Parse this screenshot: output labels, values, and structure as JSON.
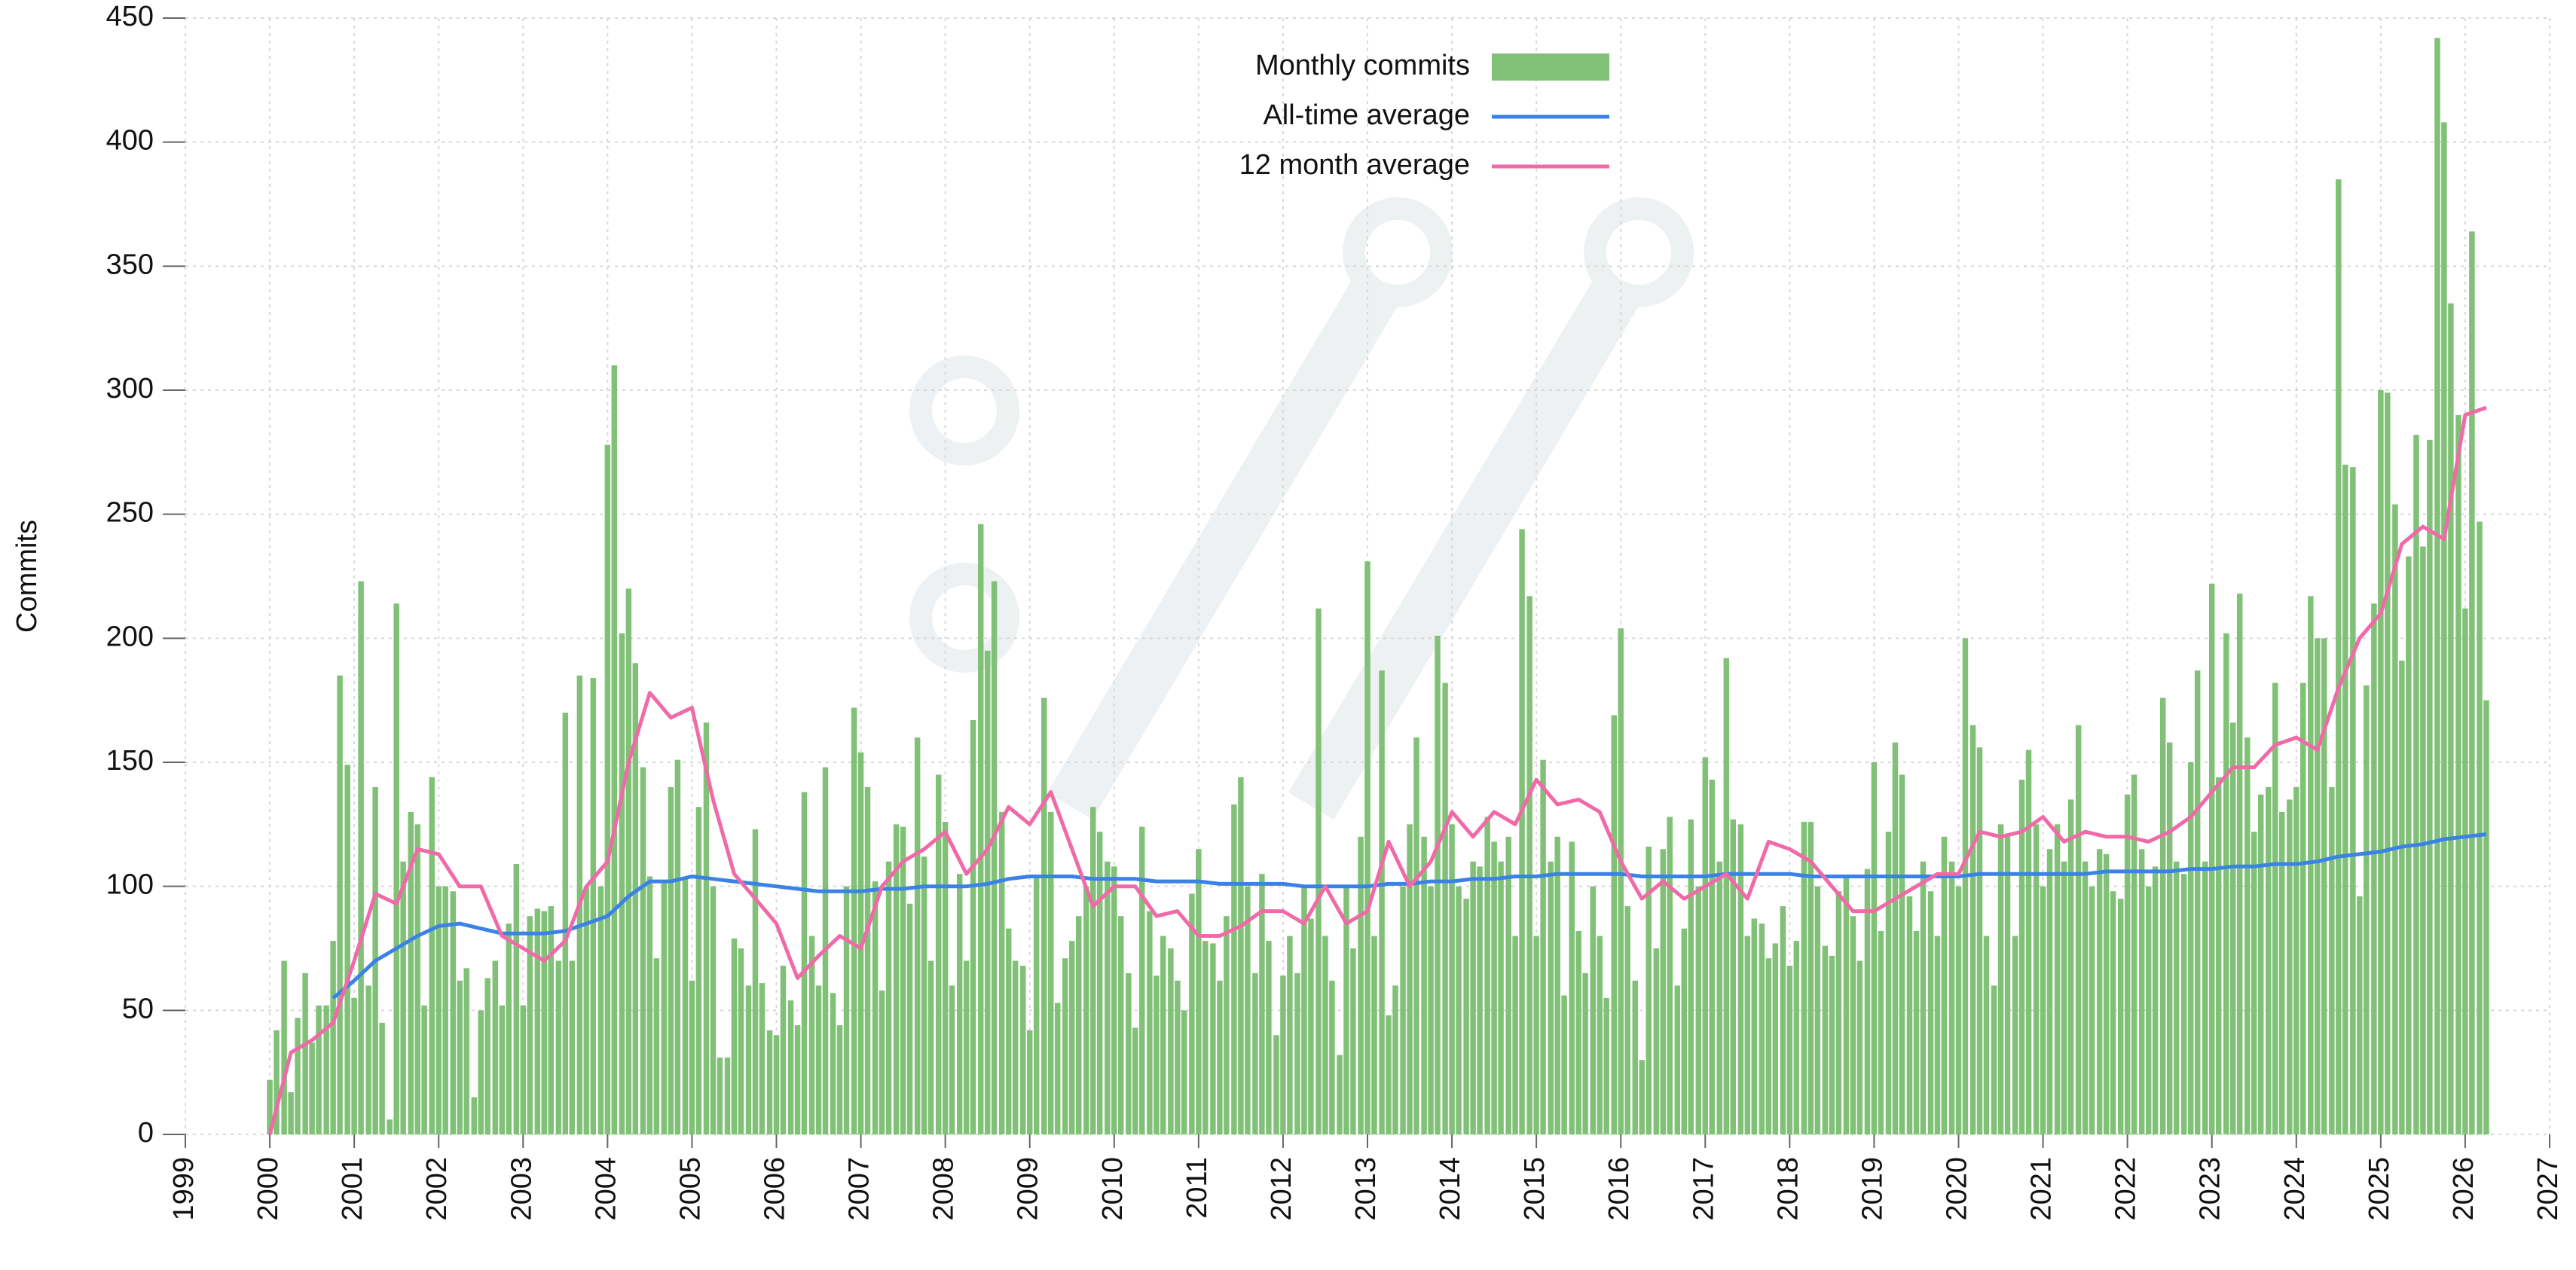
{
  "chart_data": {
    "type": "bar",
    "y_label": "Commits",
    "grid": true,
    "legend": "top",
    "xlim": [
      1999,
      2027
    ],
    "xticks": [
      1999,
      2000,
      2001,
      2002,
      2003,
      2004,
      2005,
      2006,
      2007,
      2008,
      2009,
      2010,
      2011,
      2012,
      2013,
      2014,
      2015,
      2016,
      2017,
      2018,
      2019,
      2020,
      2021,
      2022,
      2023,
      2024,
      2025,
      2026,
      2027
    ],
    "ylim": [
      0,
      450
    ],
    "yticks": [
      0,
      50,
      100,
      150,
      200,
      250,
      300,
      350,
      400,
      450
    ],
    "series": [
      {
        "name": "Monthly commits",
        "type": "bar",
        "color": "#80c177",
        "x": [
          2000,
          2000.08,
          2000.17,
          2000.25,
          2000.33,
          2000.42,
          2000.5,
          2000.58,
          2000.67,
          2000.75,
          2000.83,
          2000.92,
          2001,
          2001.08,
          2001.17,
          2001.25,
          2001.33,
          2001.42,
          2001.5,
          2001.58,
          2001.67,
          2001.75,
          2001.83,
          2001.92,
          2002,
          2002.08,
          2002.17,
          2002.25,
          2002.33,
          2002.42,
          2002.5,
          2002.58,
          2002.67,
          2002.75,
          2002.83,
          2002.92,
          2003,
          2003.08,
          2003.17,
          2003.25,
          2003.33,
          2003.42,
          2003.5,
          2003.58,
          2003.67,
          2003.75,
          2003.83,
          2003.92,
          2004,
          2004.08,
          2004.17,
          2004.25,
          2004.33,
          2004.42,
          2004.5,
          2004.58,
          2004.67,
          2004.75,
          2004.83,
          2004.92,
          2005,
          2005.08,
          2005.17,
          2005.25,
          2005.33,
          2005.42,
          2005.5,
          2005.58,
          2005.67,
          2005.75,
          2005.83,
          2005.92,
          2006,
          2006.08,
          2006.17,
          2006.25,
          2006.33,
          2006.42,
          2006.5,
          2006.58,
          2006.67,
          2006.75,
          2006.83,
          2006.92,
          2007,
          2007.08,
          2007.17,
          2007.25,
          2007.33,
          2007.42,
          2007.5,
          2007.58,
          2007.67,
          2007.75,
          2007.83,
          2007.92,
          2008,
          2008.08,
          2008.17,
          2008.25,
          2008.33,
          2008.42,
          2008.5,
          2008.58,
          2008.67,
          2008.75,
          2008.83,
          2008.92,
          2009,
          2009.08,
          2009.17,
          2009.25,
          2009.33,
          2009.42,
          2009.5,
          2009.58,
          2009.67,
          2009.75,
          2009.83,
          2009.92,
          2010,
          2010.08,
          2010.17,
          2010.25,
          2010.33,
          2010.42,
          2010.5,
          2010.58,
          2010.67,
          2010.75,
          2010.83,
          2010.92,
          2011,
          2011.08,
          2011.17,
          2011.25,
          2011.33,
          2011.42,
          2011.5,
          2011.58,
          2011.67,
          2011.75,
          2011.83,
          2011.92,
          2012,
          2012.08,
          2012.17,
          2012.25,
          2012.33,
          2012.42,
          2012.5,
          2012.58,
          2012.67,
          2012.75,
          2012.83,
          2012.92,
          2013,
          2013.08,
          2013.17,
          2013.25,
          2013.33,
          2013.42,
          2013.5,
          2013.58,
          2013.67,
          2013.75,
          2013.83,
          2013.92,
          2014,
          2014.08,
          2014.17,
          2014.25,
          2014.33,
          2014.42,
          2014.5,
          2014.58,
          2014.67,
          2014.75,
          2014.83,
          2014.92,
          2015,
          2015.08,
          2015.17,
          2015.25,
          2015.33,
          2015.42,
          2015.5,
          2015.58,
          2015.67,
          2015.75,
          2015.83,
          2015.92,
          2016,
          2016.08,
          2016.17,
          2016.25,
          2016.33,
          2016.42,
          2016.5,
          2016.58,
          2016.67,
          2016.75,
          2016.83,
          2016.92,
          2017,
          2017.08,
          2017.17,
          2017.25,
          2017.33,
          2017.42,
          2017.5,
          2017.58,
          2017.67,
          2017.75,
          2017.83,
          2017.92,
          2018,
          2018.08,
          2018.17,
          2018.25,
          2018.33,
          2018.42,
          2018.5,
          2018.58,
          2018.67,
          2018.75,
          2018.83,
          2018.92,
          2019,
          2019.08,
          2019.17,
          2019.25,
          2019.33,
          2019.42,
          2019.5,
          2019.58,
          2019.67,
          2019.75,
          2019.83,
          2019.92,
          2020,
          2020.08,
          2020.17,
          2020.25,
          2020.33,
          2020.42,
          2020.5,
          2020.58,
          2020.67,
          2020.75,
          2020.83,
          2020.92,
          2021,
          2021.08,
          2021.17,
          2021.25,
          2021.33,
          2021.42,
          2021.5,
          2021.58,
          2021.67,
          2021.75,
          2021.83,
          2021.92,
          2022,
          2022.08,
          2022.17,
          2022.25,
          2022.33,
          2022.42,
          2022.5,
          2022.58,
          2022.67,
          2022.75,
          2022.83,
          2022.92,
          2023,
          2023.08,
          2023.17,
          2023.25,
          2023.33,
          2023.42,
          2023.5,
          2023.58,
          2023.67,
          2023.75,
          2023.83,
          2023.92,
          2024,
          2024.08,
          2024.17,
          2024.25,
          2024.33,
          2024.42,
          2024.5,
          2024.58,
          2024.67,
          2024.75,
          2024.83,
          2024.92,
          2025,
          2025.08,
          2025.17,
          2025.25,
          2025.33,
          2025.42,
          2025.5,
          2025.58,
          2025.67,
          2025.75,
          2025.83,
          2025.92,
          2026,
          2026.08,
          2026.17,
          2026.25
        ],
        "values": [
          22,
          42,
          70,
          17,
          47,
          65,
          37,
          52,
          52,
          78,
          185,
          149,
          55,
          223,
          60,
          140,
          45,
          6,
          214,
          110,
          130,
          125,
          52,
          144,
          100,
          100,
          98,
          62,
          67,
          15,
          50,
          63,
          70,
          52,
          85,
          109,
          52,
          88,
          91,
          90,
          92,
          70,
          170,
          70,
          185,
          100,
          184,
          100,
          278,
          310,
          202,
          220,
          190,
          148,
          104,
          71,
          102,
          140,
          151,
          103,
          62,
          132,
          166,
          100,
          31,
          31,
          79,
          75,
          60,
          123,
          61,
          42,
          40,
          68,
          54,
          44,
          138,
          80,
          60,
          148,
          57,
          44,
          100,
          172,
          154,
          140,
          102,
          58,
          110,
          125,
          124,
          93,
          160,
          112,
          70,
          145,
          126,
          60,
          105,
          70,
          167,
          246,
          195,
          223,
          130,
          83,
          70,
          68,
          42,
          104,
          176,
          130,
          53,
          71,
          78,
          88,
          100,
          132,
          122,
          110,
          108,
          88,
          65,
          43,
          124,
          90,
          64,
          80,
          75,
          62,
          50,
          97,
          115,
          78,
          77,
          62,
          88,
          133,
          144,
          100,
          65,
          105,
          78,
          40,
          64,
          80,
          65,
          100,
          87,
          212,
          80,
          62,
          32,
          100,
          75,
          120,
          231,
          80,
          187,
          48,
          60,
          100,
          125,
          160,
          120,
          100,
          201,
          182,
          125,
          100,
          95,
          110,
          108,
          128,
          118,
          110,
          120,
          80,
          244,
          217,
          80,
          151,
          110,
          120,
          56,
          118,
          82,
          65,
          100,
          80,
          55,
          169,
          204,
          92,
          62,
          30,
          116,
          75,
          115,
          128,
          60,
          83,
          127,
          100,
          152,
          143,
          110,
          192,
          127,
          125,
          80,
          87,
          85,
          71,
          77,
          92,
          68,
          78,
          126,
          126,
          100,
          76,
          72,
          98,
          104,
          88,
          70,
          107,
          150,
          82,
          122,
          158,
          145,
          96,
          82,
          110,
          98,
          80,
          120,
          110,
          100,
          200,
          165,
          156,
          80,
          60,
          125,
          120,
          80,
          143,
          155,
          125,
          100,
          115,
          125,
          110,
          135,
          165,
          110,
          100,
          115,
          113,
          98,
          95,
          137,
          145,
          115,
          100,
          108,
          176,
          158,
          110,
          105,
          150,
          187,
          110,
          222,
          144,
          202,
          166,
          218,
          160,
          122,
          137,
          140,
          182,
          130,
          135,
          140,
          182,
          217,
          200,
          200,
          140,
          385,
          270,
          269,
          96,
          181,
          214,
          300,
          299,
          254,
          191,
          233,
          282,
          237,
          280,
          442,
          408,
          335,
          290,
          212,
          364,
          247,
          175
        ]
      },
      {
        "name": "All-time average",
        "type": "line",
        "color": "#3b82e6",
        "x": [
          2000.75,
          2001,
          2001.25,
          2001.5,
          2001.75,
          2002,
          2002.25,
          2002.5,
          2002.75,
          2003,
          2003.25,
          2003.5,
          2003.75,
          2004,
          2004.25,
          2004.5,
          2004.75,
          2005,
          2005.25,
          2005.5,
          2005.75,
          2006,
          2006.25,
          2006.5,
          2006.75,
          2007,
          2007.25,
          2007.5,
          2007.75,
          2008,
          2008.25,
          2008.5,
          2008.75,
          2009,
          2009.25,
          2009.5,
          2009.75,
          2010,
          2010.25,
          2010.5,
          2010.75,
          2011,
          2011.25,
          2011.5,
          2011.75,
          2012,
          2012.25,
          2012.5,
          2012.75,
          2013,
          2013.25,
          2013.5,
          2013.75,
          2014,
          2014.25,
          2014.5,
          2014.75,
          2015,
          2015.25,
          2015.5,
          2015.75,
          2016,
          2016.25,
          2016.5,
          2016.75,
          2017,
          2017.25,
          2017.5,
          2017.75,
          2018,
          2018.25,
          2018.5,
          2018.75,
          2019,
          2019.25,
          2019.5,
          2019.75,
          2020,
          2020.25,
          2020.5,
          2020.75,
          2021,
          2021.25,
          2021.5,
          2021.75,
          2022,
          2022.25,
          2022.5,
          2022.75,
          2023,
          2023.25,
          2023.5,
          2023.75,
          2024,
          2024.25,
          2024.5,
          2024.75,
          2025,
          2025.25,
          2025.5,
          2025.75,
          2026,
          2026.25
        ],
        "values": [
          55,
          62,
          70,
          75,
          80,
          84,
          85,
          83,
          81,
          81,
          81,
          82,
          85,
          88,
          96,
          102,
          102,
          104,
          103,
          102,
          101,
          100,
          99,
          98,
          98,
          98,
          99,
          99,
          100,
          100,
          100,
          101,
          103,
          104,
          104,
          104,
          103,
          103,
          103,
          102,
          102,
          102,
          101,
          101,
          101,
          101,
          100,
          100,
          100,
          100,
          101,
          101,
          102,
          102,
          103,
          103,
          104,
          104,
          105,
          105,
          105,
          105,
          104,
          104,
          104,
          104,
          105,
          105,
          105,
          105,
          104,
          104,
          104,
          104,
          104,
          104,
          104,
          104,
          105,
          105,
          105,
          105,
          105,
          105,
          106,
          106,
          106,
          106,
          107,
          107,
          108,
          108,
          109,
          109,
          110,
          112,
          113,
          114,
          116,
          117,
          119,
          120,
          121
        ]
      },
      {
        "name": "12 month average",
        "type": "line",
        "color": "#f06aa8",
        "x": [
          2000,
          2000.25,
          2000.5,
          2000.75,
          2001,
          2001.25,
          2001.5,
          2001.75,
          2002,
          2002.25,
          2002.5,
          2002.75,
          2003,
          2003.25,
          2003.5,
          2003.75,
          2004,
          2004.25,
          2004.5,
          2004.75,
          2005,
          2005.25,
          2005.5,
          2005.75,
          2006,
          2006.25,
          2006.5,
          2006.75,
          2007,
          2007.25,
          2007.5,
          2007.75,
          2008,
          2008.25,
          2008.5,
          2008.75,
          2009,
          2009.25,
          2009.5,
          2009.75,
          2010,
          2010.25,
          2010.5,
          2010.75,
          2011,
          2011.25,
          2011.5,
          2011.75,
          2012,
          2012.25,
          2012.5,
          2012.75,
          2013,
          2013.25,
          2013.5,
          2013.75,
          2014,
          2014.25,
          2014.5,
          2014.75,
          2015,
          2015.25,
          2015.5,
          2015.75,
          2016,
          2016.25,
          2016.5,
          2016.75,
          2017,
          2017.25,
          2017.5,
          2017.75,
          2018,
          2018.25,
          2018.5,
          2018.75,
          2019,
          2019.25,
          2019.5,
          2019.75,
          2020,
          2020.25,
          2020.5,
          2020.75,
          2021,
          2021.25,
          2021.5,
          2021.75,
          2022,
          2022.25,
          2022.5,
          2022.75,
          2023,
          2023.25,
          2023.5,
          2023.75,
          2024,
          2024.25,
          2024.5,
          2024.75,
          2025,
          2025.25,
          2025.5,
          2025.75,
          2026,
          2026.25
        ],
        "values": [
          0,
          33,
          38,
          45,
          70,
          97,
          93,
          115,
          113,
          100,
          100,
          80,
          75,
          70,
          78,
          100,
          110,
          150,
          178,
          168,
          172,
          135,
          105,
          95,
          85,
          63,
          72,
          80,
          75,
          100,
          110,
          115,
          122,
          105,
          115,
          132,
          125,
          138,
          115,
          92,
          100,
          100,
          88,
          90,
          80,
          80,
          84,
          90,
          90,
          85,
          100,
          85,
          90,
          118,
          100,
          110,
          130,
          120,
          130,
          125,
          143,
          133,
          135,
          130,
          110,
          95,
          102,
          95,
          100,
          105,
          95,
          118,
          115,
          110,
          100,
          90,
          90,
          95,
          100,
          105,
          105,
          122,
          120,
          122,
          128,
          118,
          122,
          120,
          120,
          118,
          122,
          128,
          138,
          148,
          148,
          157,
          160,
          155,
          180,
          200,
          210,
          238,
          245,
          240,
          290,
          293
        ]
      }
    ]
  }
}
